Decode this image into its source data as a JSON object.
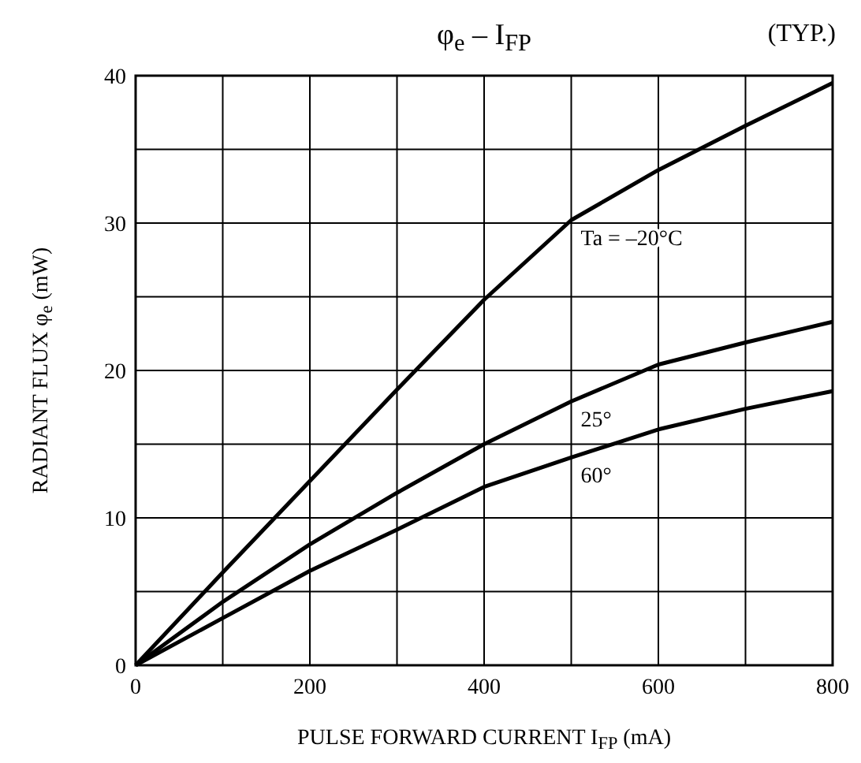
{
  "chart_data": {
    "type": "line",
    "title": "φ$_{e}$ – I$_{FP}$",
    "xlabel": "PULSE FORWARD CURRENT   I$_{FP}$   (mA)",
    "ylabel": "RADIANT FLUX   φ$_{e}$   (mW)",
    "annotations": [
      "(TYP.)"
    ],
    "x": [
      0,
      100,
      200,
      300,
      400,
      500,
      600,
      700,
      800
    ],
    "series": [
      {
        "name": "Ta = –20°C",
        "color": "#000000",
        "values": [
          0,
          6.3,
          12.5,
          18.7,
          24.8,
          30.2,
          33.6,
          36.6,
          39.5
        ]
      },
      {
        "name": "25°",
        "color": "#000000",
        "values": [
          0,
          4.3,
          8.2,
          11.7,
          15.0,
          17.9,
          20.4,
          21.9,
          23.3
        ]
      },
      {
        "name": "60°",
        "color": "#000000",
        "values": [
          0,
          3.2,
          6.4,
          9.2,
          12.1,
          14.1,
          16.0,
          17.4,
          18.6
        ]
      }
    ],
    "xlim": [
      0,
      800
    ],
    "xticks": [
      0,
      {
        "value": 100,
        "label": null
      },
      200,
      {
        "value": 300,
        "label": null
      },
      400,
      {
        "value": 500,
        "label": null
      },
      600,
      {
        "value": 700,
        "label": null
      },
      800
    ],
    "ylim": [
      0,
      40
    ],
    "yticks": [
      0,
      {
        "value": 5,
        "label": null
      },
      10,
      {
        "value": 15,
        "label": null
      },
      20,
      {
        "value": 25,
        "label": null
      },
      30,
      {
        "value": 35,
        "label": null
      },
      40
    ],
    "grid": true,
    "legend": false,
    "marker": "none",
    "line_style": "solid"
  }
}
